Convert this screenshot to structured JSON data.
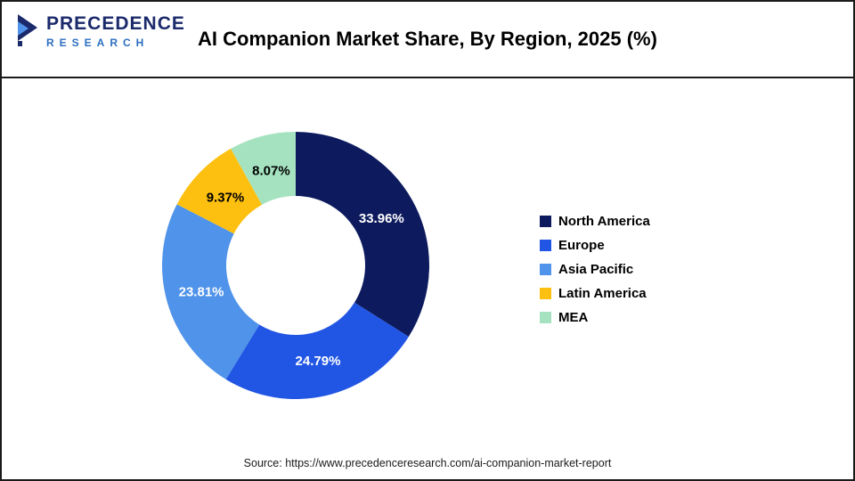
{
  "header": {
    "logo_line1": "PRECEDENCE",
    "logo_line2": "RESEARCH",
    "title": "AI Companion Market Share, By Region, 2025 (%)"
  },
  "chart_data": {
    "type": "pie",
    "subtype": "donut",
    "title": "AI Companion Market Share, By Region, 2025 (%)",
    "categories": [
      "North America",
      "Europe",
      "Asia Pacific",
      "Latin America",
      "MEA"
    ],
    "values": [
      33.96,
      24.79,
      23.81,
      9.37,
      8.07
    ],
    "unit": "%",
    "colors": [
      "#0d1b5e",
      "#2155e4",
      "#4f93ea",
      "#fdc010",
      "#a5e3c0"
    ],
    "label_colors": [
      "#ffffff",
      "#ffffff",
      "#ffffff",
      "#000000",
      "#000000"
    ],
    "start_angle_deg": 0,
    "direction": "clockwise",
    "inner_radius_ratio": 0.52,
    "legend_position": "right"
  },
  "footer": {
    "source": "Source: https://www.precedenceresearch.com/ai-companion-market-report"
  }
}
